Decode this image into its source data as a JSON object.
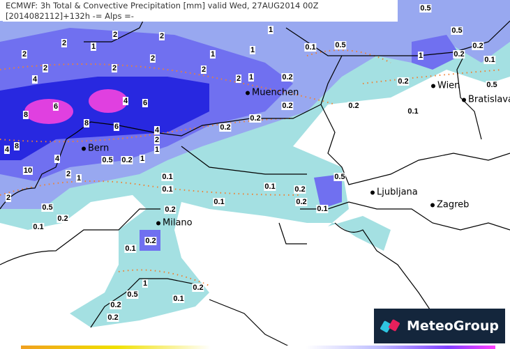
{
  "title": {
    "line1": "ECMWF: 3h Total & Convective Precipitation [mm] valid Wed, 27AUG2014 00Z",
    "line2": "[2014082112]+132h -= Alps =-"
  },
  "colors": {
    "cyan": "#a4e0e2",
    "light_blue": "#98a8f0",
    "blue": "#7070f0",
    "dark_blue": "#2828e0",
    "magenta": "#e040e0",
    "contour": "#f08030",
    "border": "#000000"
  },
  "cities": [
    {
      "name": "Bern"
    },
    {
      "name": "Muenchen"
    },
    {
      "name": "Wien"
    },
    {
      "name": "Bratislava"
    },
    {
      "name": "Ljubljana"
    },
    {
      "name": "Zagreb"
    },
    {
      "name": "Milano"
    }
  ],
  "labels": [
    "2",
    "2",
    "1",
    "2",
    "2",
    "2",
    "2",
    "2",
    "4",
    "2",
    "1",
    "1",
    "1",
    "6",
    "8",
    "4",
    "6",
    "8",
    "6",
    "4",
    "2",
    "1",
    "4",
    "8",
    "4",
    "10",
    "2",
    "1",
    "2",
    "0.5",
    "0.2",
    "0.1",
    "0.5",
    "0.2",
    "1",
    "2",
    "1",
    "0.1",
    "0.5",
    "0.2",
    "0.2",
    "0.2",
    "0.2",
    "0.5",
    "0.5",
    "1",
    "0.2",
    "0.2",
    "0.1",
    "0.2",
    "0.1",
    "0.5",
    "0.2",
    "0.1",
    "0.1",
    "0.1",
    "0.1",
    "0.2",
    "0.2",
    "0.5",
    "0.1",
    "0.2",
    "0.2",
    "0.1",
    "1",
    "0.5",
    "0.2",
    "0.2",
    "0.1",
    "0.2"
  ],
  "logo": {
    "text": "MeteoGroup"
  }
}
